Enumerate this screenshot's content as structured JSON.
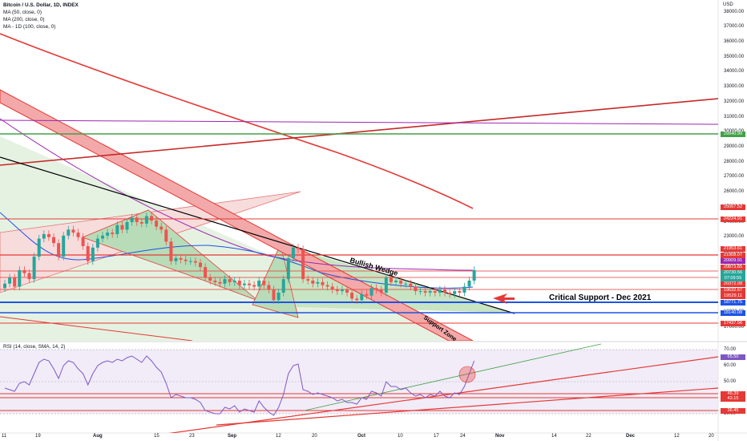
{
  "header": {
    "title": "Bitcoin / U.S. Dollar, 1D, INDEX",
    "indicators": [
      "MA (50, close, 0)",
      "MA (200, close, 0)",
      "MA - 1D (100, close, 0)"
    ],
    "currency": "USD",
    "rsi_label": "RSI (14, close, SMA, 14, 2)"
  },
  "annotations": {
    "wedge": "Bullish Wedge",
    "critical": "Critical Support - Dec 2021",
    "support_zone": "Support Zone"
  },
  "colors": {
    "up": "#26a69a",
    "down": "#ef5350",
    "red_line": "#e53935",
    "green_line": "#43a047",
    "purple": "#9c27b0",
    "blue": "#1e53e5",
    "black": "#000000"
  },
  "chart_data": [
    {
      "type": "candlestick",
      "title": "Bitcoin / U.S. Dollar, 1D, INDEX",
      "ylim": [
        17000,
        38000
      ],
      "y_ticks": [
        "38000.00",
        "37000.00",
        "36000.00",
        "35000.00",
        "34000.00",
        "33000.00",
        "32000.00",
        "31000.00",
        "30000.00",
        "29000.00",
        "28000.00",
        "27000.00",
        "26000.00",
        "25000.00",
        "24000.00",
        "23000.00",
        "22000.00",
        "21000.00",
        "20000.00",
        "19000.00",
        "18000.00",
        "17000.00"
      ],
      "x_ticks": [
        "11",
        "19",
        "Aug",
        "15",
        "23",
        "Sep",
        "12",
        "20",
        "Oct",
        "10",
        "17",
        "24",
        "Nov",
        "14",
        "22",
        "Dec",
        "12",
        "20"
      ],
      "close": [
        19900,
        20300,
        19700,
        20800,
        20600,
        20200,
        21700,
        22900,
        23200,
        23000,
        22600,
        21700,
        23100,
        23500,
        23300,
        23000,
        22400,
        21400,
        22300,
        22900,
        23100,
        23300,
        23200,
        23800,
        23500,
        24000,
        24300,
        24000,
        23900,
        24400,
        24100,
        23700,
        23500,
        22700,
        21400,
        21600,
        21500,
        21400,
        21400,
        21300,
        21000,
        20300,
        20100,
        20000,
        19900,
        20200,
        20000,
        20100,
        19800,
        19900,
        19800,
        19700,
        20100,
        19800,
        19500,
        18800,
        19300,
        20200,
        21600,
        22300,
        22200,
        20200,
        20100,
        19900,
        20000,
        19800,
        19700,
        19500,
        19400,
        19500,
        19300,
        18900,
        18800,
        19200,
        19100,
        19600,
        19500,
        19300,
        20300,
        20000,
        20100,
        19900,
        19900,
        19700,
        19400,
        19400,
        19300,
        19400,
        19300,
        19500,
        19300,
        19200,
        19400,
        19300,
        19700,
        20100,
        20800
      ],
      "price_labels": [
        "29940.99",
        "25067.52",
        "24224.91",
        "21953.61",
        "21908.07",
        "20909.91",
        "20873.85",
        "20730.56",
        "07:09:55",
        "20372.08",
        "19632.67",
        "19529.11",
        "18771.75",
        "18140.08",
        "17437.56"
      ]
    },
    {
      "type": "line",
      "title": "RSI (14, close, SMA, 14, 2)",
      "ylim": [
        30,
        70
      ],
      "y_ticks": [
        "70.00",
        "60.00",
        "50.00",
        "40.00",
        "30.00"
      ],
      "values": [
        46,
        45,
        44,
        49,
        50,
        48,
        55,
        62,
        64,
        63,
        58,
        52,
        60,
        63,
        62,
        58,
        55,
        48,
        55,
        60,
        62,
        63,
        62,
        64,
        63,
        65,
        66,
        64,
        62,
        66,
        63,
        59,
        56,
        49,
        40,
        42,
        41,
        40,
        40,
        39,
        37,
        32,
        31,
        30,
        30,
        34,
        33,
        35,
        31,
        33,
        32,
        31,
        38,
        34,
        31,
        29,
        34,
        42,
        55,
        60,
        61,
        45,
        44,
        42,
        43,
        42,
        41,
        40,
        38,
        39,
        37,
        37,
        36,
        40,
        39,
        44,
        43,
        41,
        50,
        47,
        47,
        45,
        46,
        43,
        41,
        42,
        40,
        42,
        41,
        44,
        41,
        40,
        43,
        42,
        47,
        55,
        63
      ],
      "levels": [
        "65.50",
        "45.39",
        "43.15",
        "36.45"
      ]
    }
  ]
}
